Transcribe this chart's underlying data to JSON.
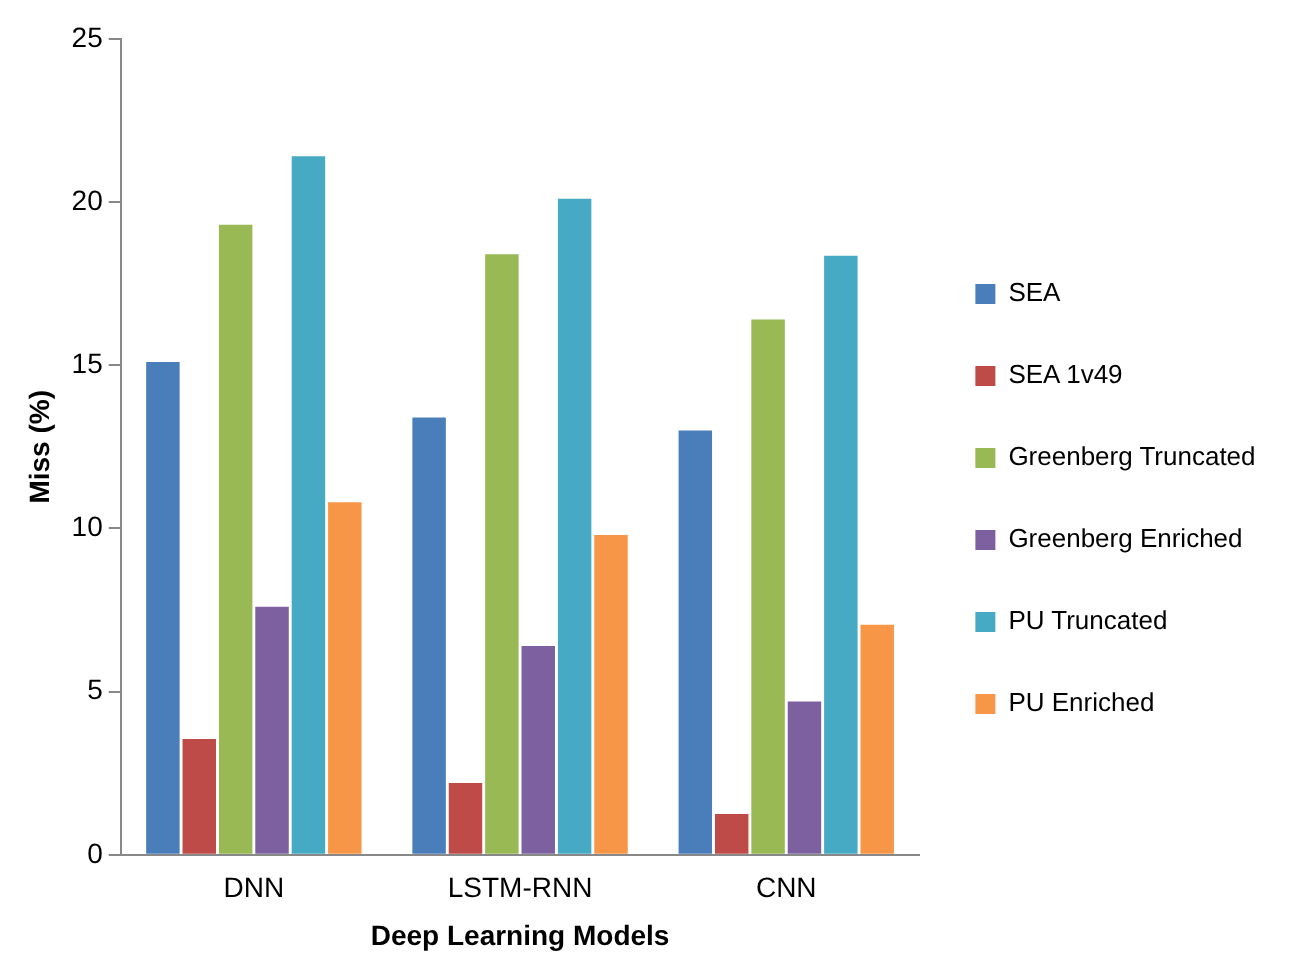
{
  "chart_data": {
    "type": "bar",
    "xlabel": "Deep Learning Models",
    "ylabel": "Miss (%)",
    "categories": [
      "DNN",
      "LSTM-RNN",
      "CNN"
    ],
    "series": [
      {
        "name": "SEA",
        "color": "#4a7ebb",
        "values": [
          15.1,
          13.4,
          13.0
        ]
      },
      {
        "name": "SEA 1v49",
        "color": "#be4b48",
        "values": [
          3.55,
          2.2,
          1.25
        ]
      },
      {
        "name": "Greenberg Truncated",
        "color": "#98b954",
        "values": [
          19.3,
          18.4,
          16.4
        ]
      },
      {
        "name": "Greenberg Enriched",
        "color": "#7d60a0",
        "values": [
          7.6,
          6.4,
          4.7
        ]
      },
      {
        "name": "PU Truncated",
        "color": "#46aac5",
        "values": [
          21.4,
          20.1,
          18.35
        ]
      },
      {
        "name": "PU Enriched",
        "color": "#f79646",
        "values": [
          10.8,
          9.8,
          7.05
        ]
      }
    ],
    "ylim": [
      0,
      25
    ],
    "yticks": [
      0,
      5,
      10,
      15,
      20,
      25
    ],
    "grid": false,
    "legend": "right"
  }
}
